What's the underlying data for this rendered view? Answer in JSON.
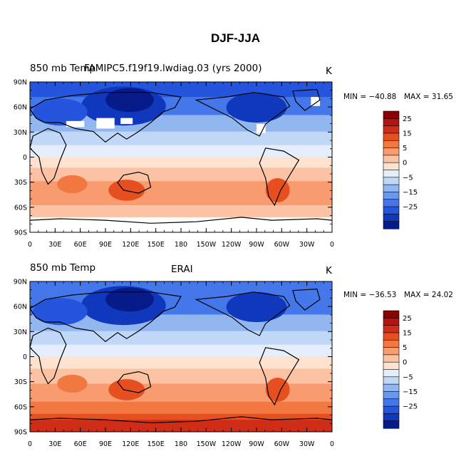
{
  "figure": {
    "title": "DJF-JJA"
  },
  "panels": [
    {
      "variable_label": "850 mb Temp",
      "source_label": "FAMIPC5.f19f19.lwdiag.03 (yrs 2000)",
      "units_label": "K",
      "min_label": "MIN = −40.88",
      "max_label": "MAX =  31.65"
    },
    {
      "variable_label": "850 mb Temp",
      "source_label": "ERAI",
      "units_label": "K",
      "min_label": "MIN = −36.53",
      "max_label": "MAX =  24.02"
    }
  ],
  "axes": {
    "lat_ticks": [
      "90N",
      "60N",
      "30N",
      "0",
      "30S",
      "60S",
      "90S"
    ],
    "lon_ticks": [
      "0",
      "30E",
      "60E",
      "90E",
      "120E",
      "150E",
      "180",
      "150W",
      "120W",
      "90W",
      "60W",
      "30W",
      "0"
    ]
  },
  "colorbar": {
    "labels": [
      "25",
      "15",
      "5",
      "0",
      "−5",
      "−15",
      "−25"
    ],
    "colors": [
      "#8b0000",
      "#b2150f",
      "#cf2d17",
      "#e65020",
      "#f27841",
      "#f89c70",
      "#fbc3a4",
      "#fde3cf",
      "#e4eefc",
      "#c1d7f7",
      "#92b7f0",
      "#6a98ec",
      "#4477ea",
      "#2455dc",
      "#1038bd",
      "#071a8a"
    ]
  },
  "chart_data": {
    "type": "heatmap",
    "title": "DJF-JJA",
    "description_units": "K",
    "panels": [
      {
        "name": "FAMIPC5.f19f19.lwdiag.03 (yrs 2000)",
        "min": -40.88,
        "max": 31.65
      },
      {
        "name": "ERAI",
        "min": -36.53,
        "max": 24.02
      }
    ],
    "xlabel": "",
    "ylabel": "",
    "xlim": [
      0,
      360
    ],
    "ylim": [
      -90,
      90
    ],
    "colorbar_levels": [
      -35,
      -30,
      -25,
      -20,
      -15,
      -10,
      -5,
      0,
      5,
      10,
      15,
      20,
      25,
      30
    ]
  }
}
